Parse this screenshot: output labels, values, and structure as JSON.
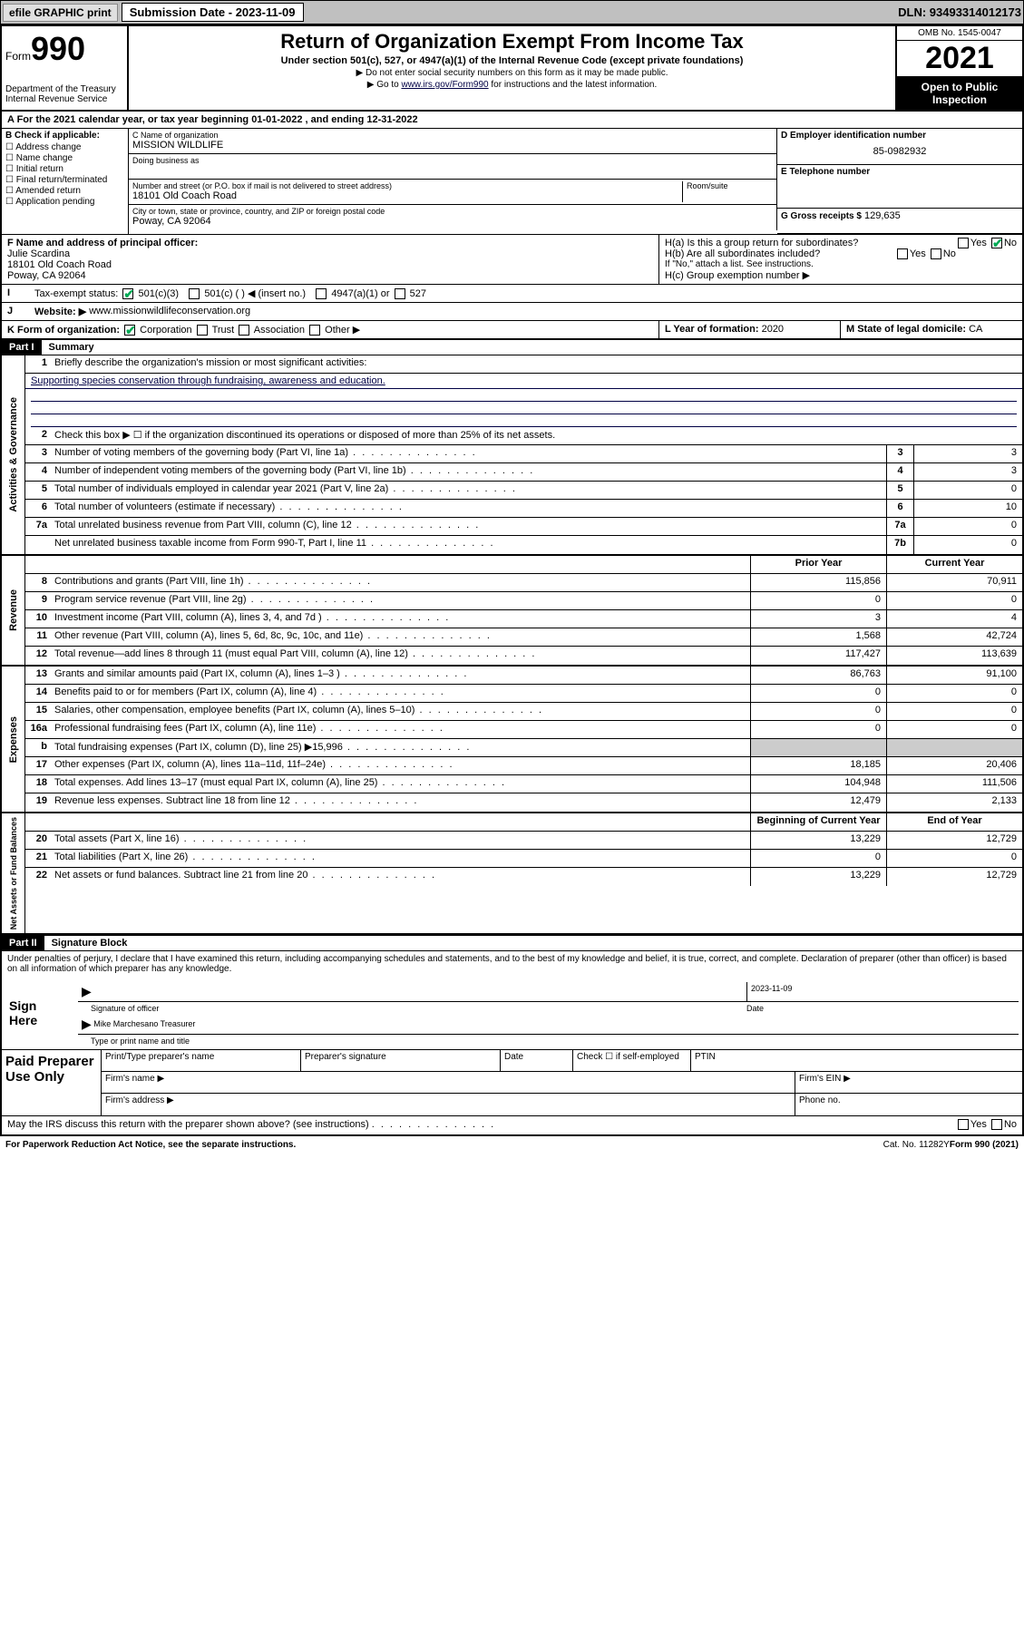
{
  "topbar": {
    "efile": "efile GRAPHIC print",
    "sub_label": "Submission Date - 2023-11-09",
    "dln": "DLN: 93493314012173"
  },
  "header": {
    "form_word": "Form",
    "form_num": "990",
    "dept": "Department of the Treasury",
    "irs": "Internal Revenue Service",
    "title": "Return of Organization Exempt From Income Tax",
    "sub": "Under section 501(c), 527, or 4947(a)(1) of the Internal Revenue Code (except private foundations)",
    "note1": "▶ Do not enter social security numbers on this form as it may be made public.",
    "note2_pre": "▶ Go to ",
    "note2_link": "www.irs.gov/Form990",
    "note2_post": " for instructions and the latest information.",
    "omb": "OMB No. 1545-0047",
    "year": "2021",
    "open": "Open to Public Inspection"
  },
  "row_a": "A For the 2021 calendar year, or tax year beginning 01-01-2022   , and ending 12-31-2022",
  "col_b": {
    "label": "B Check if applicable:",
    "items": [
      "Address change",
      "Name change",
      "Initial return",
      "Final return/terminated",
      "Amended return",
      "Application pending"
    ]
  },
  "col_c": {
    "name_lbl": "C Name of organization",
    "name": "MISSION WILDLIFE",
    "dba_lbl": "Doing business as",
    "street_lbl": "Number and street (or P.O. box if mail is not delivered to street address)",
    "room_lbl": "Room/suite",
    "street": "18101 Old Coach Road",
    "city_lbl": "City or town, state or province, country, and ZIP or foreign postal code",
    "city": "Poway, CA  92064"
  },
  "col_d": {
    "ein_lbl": "D Employer identification number",
    "ein": "85-0982932",
    "tel_lbl": "E Telephone number",
    "gross_lbl": "G Gross receipts $",
    "gross": "129,635"
  },
  "row_f": {
    "lbl": "F Name and address of principal officer:",
    "name": "Julie Scardina",
    "addr1": "18101 Old Coach Road",
    "addr2": "Poway, CA  92064"
  },
  "row_h": {
    "ha": "H(a)  Is this a group return for subordinates?",
    "hb": "H(b)  Are all subordinates included?",
    "hb_note": "If \"No,\" attach a list. See instructions.",
    "hc": "H(c)  Group exemption number ▶",
    "yes": "Yes",
    "no": "No"
  },
  "row_i": {
    "lbl": "Tax-exempt status:",
    "c3": "501(c)(3)",
    "c": "501(c) (  ) ◀ (insert no.)",
    "a1": "4947(a)(1) or",
    "527": "527"
  },
  "row_j": {
    "lbl": "Website: ▶",
    "val": "www.missionwildlifeconservation.org"
  },
  "row_k": {
    "lbl": "K Form of organization:",
    "corp": "Corporation",
    "trust": "Trust",
    "assoc": "Association",
    "other": "Other ▶"
  },
  "row_l": {
    "lbl": "L Year of formation:",
    "val": "2020"
  },
  "row_m": {
    "lbl": "M State of legal domicile:",
    "val": "CA"
  },
  "part1": {
    "hdr": "Part I",
    "title": "Summary"
  },
  "summary": {
    "q1": "Briefly describe the organization's mission or most significant activities:",
    "mission": "Supporting species conservation through fundraising, awareness and education.",
    "q2": "Check this box ▶ ☐  if the organization discontinued its operations or disposed of more than 25% of its net assets.",
    "lines": [
      {
        "n": "3",
        "d": "Number of voting members of the governing body (Part VI, line 1a)",
        "b": "3",
        "v": "3"
      },
      {
        "n": "4",
        "d": "Number of independent voting members of the governing body (Part VI, line 1b)",
        "b": "4",
        "v": "3"
      },
      {
        "n": "5",
        "d": "Total number of individuals employed in calendar year 2021 (Part V, line 2a)",
        "b": "5",
        "v": "0"
      },
      {
        "n": "6",
        "d": "Total number of volunteers (estimate if necessary)",
        "b": "6",
        "v": "10"
      },
      {
        "n": "7a",
        "d": "Total unrelated business revenue from Part VIII, column (C), line 12",
        "b": "7a",
        "v": "0"
      },
      {
        "n": "",
        "d": "Net unrelated business taxable income from Form 990-T, Part I, line 11",
        "b": "7b",
        "v": "0"
      }
    ],
    "col_prior": "Prior Year",
    "col_current": "Current Year",
    "revenue": [
      {
        "n": "8",
        "d": "Contributions and grants (Part VIII, line 1h)",
        "p": "115,856",
        "c": "70,911"
      },
      {
        "n": "9",
        "d": "Program service revenue (Part VIII, line 2g)",
        "p": "0",
        "c": "0"
      },
      {
        "n": "10",
        "d": "Investment income (Part VIII, column (A), lines 3, 4, and 7d )",
        "p": "3",
        "c": "4"
      },
      {
        "n": "11",
        "d": "Other revenue (Part VIII, column (A), lines 5, 6d, 8c, 9c, 10c, and 11e)",
        "p": "1,568",
        "c": "42,724"
      },
      {
        "n": "12",
        "d": "Total revenue—add lines 8 through 11 (must equal Part VIII, column (A), line 12)",
        "p": "117,427",
        "c": "113,639"
      }
    ],
    "expenses": [
      {
        "n": "13",
        "d": "Grants and similar amounts paid (Part IX, column (A), lines 1–3 )",
        "p": "86,763",
        "c": "91,100"
      },
      {
        "n": "14",
        "d": "Benefits paid to or for members (Part IX, column (A), line 4)",
        "p": "0",
        "c": "0"
      },
      {
        "n": "15",
        "d": "Salaries, other compensation, employee benefits (Part IX, column (A), lines 5–10)",
        "p": "0",
        "c": "0"
      },
      {
        "n": "16a",
        "d": "Professional fundraising fees (Part IX, column (A), line 11e)",
        "p": "0",
        "c": "0"
      },
      {
        "n": "b",
        "d": "Total fundraising expenses (Part IX, column (D), line 25) ▶15,996",
        "p": "",
        "c": "",
        "shade": true
      },
      {
        "n": "17",
        "d": "Other expenses (Part IX, column (A), lines 11a–11d, 11f–24e)",
        "p": "18,185",
        "c": "20,406"
      },
      {
        "n": "18",
        "d": "Total expenses. Add lines 13–17 (must equal Part IX, column (A), line 25)",
        "p": "104,948",
        "c": "111,506"
      },
      {
        "n": "19",
        "d": "Revenue less expenses. Subtract line 18 from line 12",
        "p": "12,479",
        "c": "2,133"
      }
    ],
    "col_begin": "Beginning of Current Year",
    "col_end": "End of Year",
    "netassets": [
      {
        "n": "20",
        "d": "Total assets (Part X, line 16)",
        "p": "13,229",
        "c": "12,729"
      },
      {
        "n": "21",
        "d": "Total liabilities (Part X, line 26)",
        "p": "0",
        "c": "0"
      },
      {
        "n": "22",
        "d": "Net assets or fund balances. Subtract line 21 from line 20",
        "p": "13,229",
        "c": "12,729"
      }
    ]
  },
  "sect_labels": {
    "gov": "Activities & Governance",
    "rev": "Revenue",
    "exp": "Expenses",
    "net": "Net Assets or Fund Balances"
  },
  "part2": {
    "hdr": "Part II",
    "title": "Signature Block"
  },
  "sig": {
    "decl": "Under penalties of perjury, I declare that I have examined this return, including accompanying schedules and statements, and to the best of my knowledge and belief, it is true, correct, and complete. Declaration of preparer (other than officer) is based on all information of which preparer has any knowledge.",
    "sign_here": "Sign Here",
    "sig_officer": "Signature of officer",
    "date_lbl": "Date",
    "date": "2023-11-09",
    "name": "Mike Marchesano  Treasurer",
    "name_lbl": "Type or print name and title",
    "paid": "Paid Preparer Use Only",
    "p_name": "Print/Type preparer's name",
    "p_sig": "Preparer's signature",
    "p_date": "Date",
    "p_check": "Check ☐ if self-employed",
    "ptin": "PTIN",
    "firm_name": "Firm's name    ▶",
    "firm_ein": "Firm's EIN ▶",
    "firm_addr": "Firm's address ▶",
    "phone": "Phone no.",
    "may_irs": "May the IRS discuss this return with the preparer shown above? (see instructions)"
  },
  "footer": {
    "left": "For Paperwork Reduction Act Notice, see the separate instructions.",
    "mid": "Cat. No. 11282Y",
    "right": "Form 990 (2021)"
  }
}
